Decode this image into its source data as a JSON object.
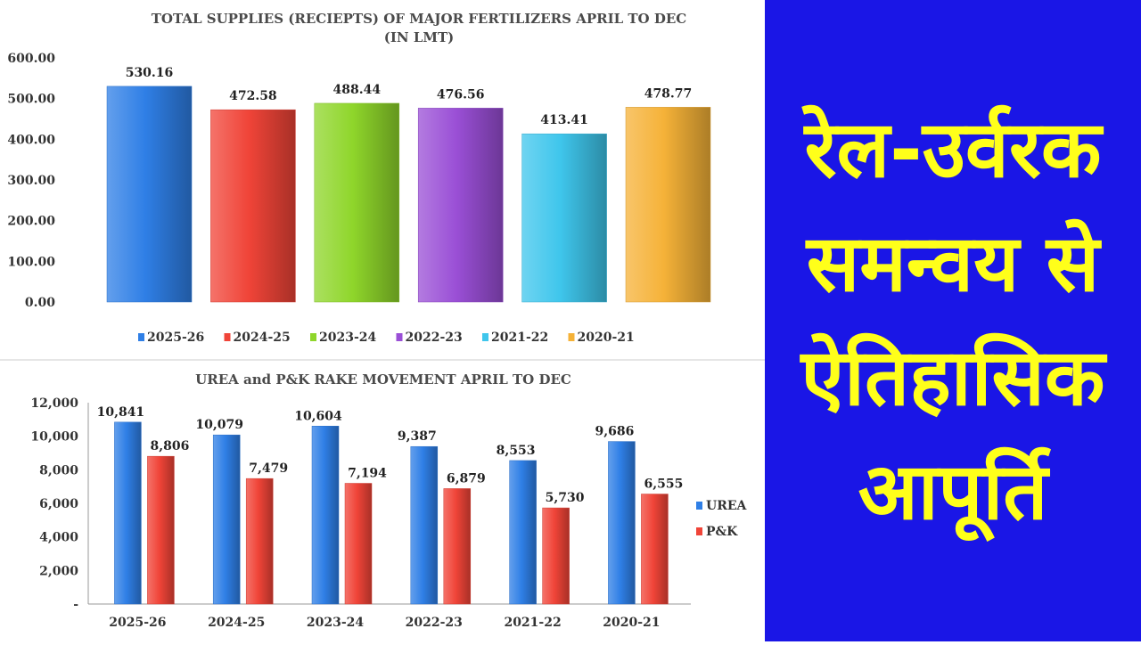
{
  "charts": [
    {
      "title_line1": "TOTAL SUPPLIES (RECIEPTS) OF MAJOR FERTILIZERS APRIL TO DEC",
      "title_line2": "(IN LMT)"
    },
    {
      "title_line1": "UREA and P&K RAKE MOVEMENT APRIL TO DEC"
    }
  ],
  "chart_data": [
    {
      "type": "bar",
      "title": "TOTAL SUPPLIES (RECIEPTS) OF MAJOR FERTILIZERS APRIL TO DEC (IN LMT)",
      "categories": [
        "2025-26",
        "2024-25",
        "2023-24",
        "2022-23",
        "2021-22",
        "2020-21"
      ],
      "values": [
        530.16,
        472.58,
        488.44,
        476.56,
        413.41,
        478.77
      ],
      "value_labels": [
        "530.16",
        "472.58",
        "488.44",
        "476.56",
        "413.41",
        "478.77"
      ],
      "colors": [
        "#2f7fe6",
        "#f04438",
        "#8fd62b",
        "#9a4fd6",
        "#3fc6ec",
        "#f5b238"
      ],
      "ylim": [
        0,
        600
      ],
      "yticks": [
        "0.00",
        "100.00",
        "200.00",
        "300.00",
        "400.00",
        "500.00",
        "600.00"
      ],
      "grid": false,
      "legend": "bottom",
      "legend_entries": [
        "2025-26",
        "2024-25",
        "2023-24",
        "2022-23",
        "2021-22",
        "2020-21"
      ]
    },
    {
      "type": "bar",
      "title": "UREA and P&K RAKE MOVEMENT APRIL TO DEC",
      "categories": [
        "2025-26",
        "2024-25",
        "2023-24",
        "2022-23",
        "2021-22",
        "2020-21"
      ],
      "series": [
        {
          "name": "UREA",
          "values": [
            10841,
            10079,
            10604,
            9387,
            8553,
            9686
          ],
          "labels": [
            "10,841",
            "10,079",
            "10,604",
            "9,387",
            "8,553",
            "9,686"
          ],
          "color": "#2f7fe6"
        },
        {
          "name": "P&K",
          "values": [
            8806,
            7479,
            7194,
            6879,
            5730,
            6555
          ],
          "labels": [
            "8,806",
            "7,479",
            "7,194",
            "6,879",
            "5,730",
            "6,555"
          ],
          "color": "#f04438"
        }
      ],
      "ylim": [
        0,
        12000
      ],
      "yticks": [
        "-",
        "2,000",
        "4,000",
        "6,000",
        "8,000",
        "10,000",
        "12,000"
      ],
      "grid": false,
      "legend": "right"
    }
  ],
  "headline": {
    "lines": [
      "रेल-उर्वरक",
      "समन्वय से",
      "ऐतिहासिक",
      "आपूर्ति"
    ],
    "text_color": "#ffff1a",
    "background": "#1a16e6"
  }
}
